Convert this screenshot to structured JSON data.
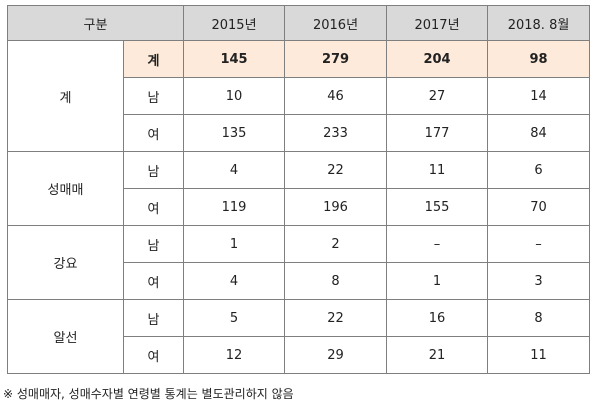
{
  "table": {
    "header": {
      "category": "구분",
      "years": [
        "2015년",
        "2016년",
        "2017년",
        "2018. 8월"
      ]
    },
    "groups": [
      {
        "name": "계",
        "rows": [
          {
            "label": "계",
            "values": [
              "145",
              "279",
              "204",
              "98"
            ]
          },
          {
            "label": "남",
            "values": [
              "10",
              "46",
              "27",
              "14"
            ]
          },
          {
            "label": "여",
            "values": [
              "135",
              "233",
              "177",
              "84"
            ]
          }
        ]
      },
      {
        "name": "성매매",
        "rows": [
          {
            "label": "남",
            "values": [
              "4",
              "22",
              "11",
              "6"
            ]
          },
          {
            "label": "여",
            "values": [
              "119",
              "196",
              "155",
              "70"
            ]
          }
        ]
      },
      {
        "name": "강요",
        "rows": [
          {
            "label": "남",
            "values": [
              "1",
              "2",
              "–",
              "–"
            ]
          },
          {
            "label": "여",
            "values": [
              "4",
              "8",
              "1",
              "3"
            ]
          }
        ]
      },
      {
        "name": "알선",
        "rows": [
          {
            "label": "남",
            "values": [
              "5",
              "22",
              "16",
              "8"
            ]
          },
          {
            "label": "여",
            "values": [
              "12",
              "29",
              "21",
              "11"
            ]
          }
        ]
      }
    ]
  },
  "colors": {
    "header_bg": "#d9d9d9",
    "highlight_bg": "#fdeada",
    "border": "#7f7f7f"
  },
  "footnote": "※ 성매매자, 성매수자별 연령별 통계는 별도관리하지 않음"
}
